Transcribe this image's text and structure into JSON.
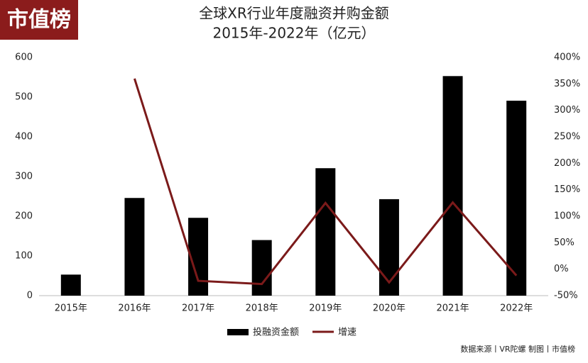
{
  "logo": "市值榜",
  "source": "数据来源丨VR陀螺 制图丨市值榜",
  "chart_data": {
    "type": "bar-line",
    "title": "全球XR行业年度融资并购金额",
    "subtitle": "2015年-2022年（亿元）",
    "categories": [
      "2015年",
      "2016年",
      "2017年",
      "2018年",
      "2019年",
      "2020年",
      "2021年",
      "2022年"
    ],
    "series": [
      {
        "name": "投融资金额",
        "type": "bar",
        "color": "#000000",
        "values": [
          53,
          246,
          196,
          140,
          321,
          243,
          553,
          491
        ]
      },
      {
        "name": "增速",
        "type": "line",
        "axis": "y2",
        "color": "#7b1a1a",
        "values": [
          null,
          360,
          -22,
          -28,
          125,
          -25,
          126,
          -12
        ]
      }
    ],
    "ylim": [
      0,
      600
    ],
    "yticks": [
      0,
      100,
      200,
      300,
      400,
      500,
      600
    ],
    "y2lim": [
      -50,
      400
    ],
    "y2ticks": [
      {
        "value": -50,
        "label": "-50%"
      },
      {
        "value": 0,
        "label": "0%"
      },
      {
        "value": 50,
        "label": "50%"
      },
      {
        "value": 100,
        "label": "100%"
      },
      {
        "value": 150,
        "label": "150%"
      },
      {
        "value": 200,
        "label": "200%"
      },
      {
        "value": 250,
        "label": "250%"
      },
      {
        "value": 300,
        "label": "300%"
      },
      {
        "value": 350,
        "label": "350%"
      },
      {
        "value": 400,
        "label": "400%"
      }
    ],
    "grid": false,
    "legend": "bottom"
  }
}
